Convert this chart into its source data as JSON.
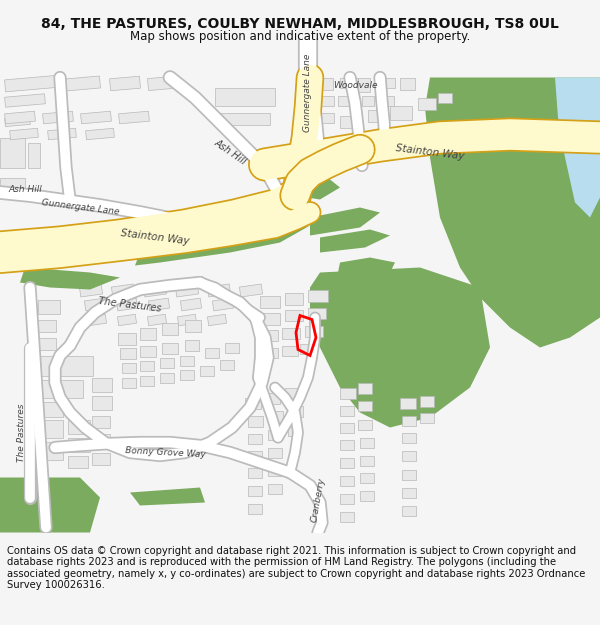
{
  "title": "84, THE PASTURES, COULBY NEWHAM, MIDDLESBROUGH, TS8 0UL",
  "subtitle": "Map shows position and indicative extent of the property.",
  "footer": "Contains OS data © Crown copyright and database right 2021. This information is subject to Crown copyright and database rights 2023 and is reproduced with the permission of HM Land Registry. The polygons (including the associated geometry, namely x, y co-ordinates) are subject to Crown copyright and database rights 2023 Ordnance Survey 100026316.",
  "title_fontsize": 10,
  "subtitle_fontsize": 8.5,
  "footer_fontsize": 7.2,
  "bg_color": "#f5f5f5",
  "map_bg": "#ffffff",
  "road_major_color": "#fffacd",
  "road_major_border": "#d4a017",
  "road_minor_color": "#ffffff",
  "road_minor_border": "#bbbbbb",
  "green_color": "#7aab5e",
  "building_color": "#e8e8e8",
  "building_border": "#b8b8b8",
  "water_color": "#b8ddef",
  "plot_color": "#ff0000",
  "text_color": "#444444"
}
